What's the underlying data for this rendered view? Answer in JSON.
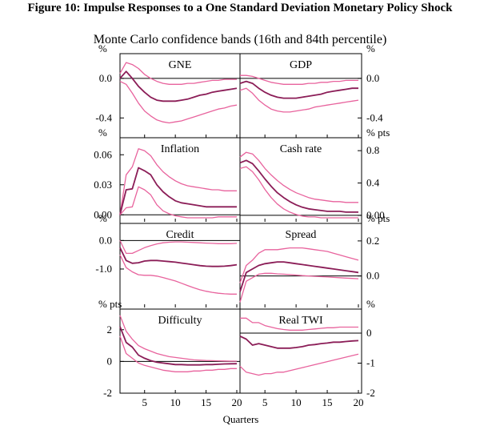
{
  "figure": {
    "title": "Figure 10: Impulse Responses to a One Standard Deviation Monetary Policy Shock",
    "subtitle": "Monte Carlo confidence bands (16th and 84th percentile)",
    "xlabel": "Quarters",
    "x_ticks": [
      "5",
      "10",
      "15",
      "20"
    ]
  },
  "colors": {
    "central": "#8b1d57",
    "band": "#e8639d",
    "zero": "#000000"
  },
  "chart_data": [
    {
      "type": "line",
      "title": "GNE",
      "unit": "%",
      "ylim": [
        -0.6,
        0.25
      ],
      "yticks": [
        0.0,
        -0.4
      ],
      "ytick_labels": [
        "0.0",
        "-0.4"
      ],
      "side": "left",
      "x": [
        1,
        2,
        3,
        4,
        5,
        6,
        7,
        8,
        9,
        10,
        11,
        12,
        13,
        14,
        15,
        16,
        17,
        18,
        19,
        20
      ],
      "series": [
        {
          "role": "upper",
          "values": [
            0.05,
            0.16,
            0.14,
            0.1,
            0.04,
            0.0,
            -0.03,
            -0.05,
            -0.06,
            -0.06,
            -0.06,
            -0.05,
            -0.05,
            -0.04,
            -0.03,
            -0.02,
            -0.02,
            -0.01,
            -0.01,
            -0.01
          ]
        },
        {
          "role": "central",
          "values": [
            0.0,
            0.07,
            0.0,
            -0.08,
            -0.14,
            -0.19,
            -0.22,
            -0.23,
            -0.23,
            -0.23,
            -0.22,
            -0.21,
            -0.19,
            -0.17,
            -0.16,
            -0.14,
            -0.13,
            -0.12,
            -0.11,
            -0.1
          ]
        },
        {
          "role": "lower",
          "values": [
            -0.03,
            -0.06,
            -0.15,
            -0.25,
            -0.33,
            -0.38,
            -0.42,
            -0.44,
            -0.45,
            -0.44,
            -0.43,
            -0.41,
            -0.39,
            -0.37,
            -0.35,
            -0.33,
            -0.31,
            -0.3,
            -0.28,
            -0.27
          ]
        }
      ]
    },
    {
      "type": "line",
      "title": "GDP",
      "unit": "%",
      "ylim": [
        -0.6,
        0.25
      ],
      "yticks": [
        0.0,
        -0.4
      ],
      "ytick_labels": [
        "0.0",
        "-0.4"
      ],
      "side": "right",
      "x": [
        1,
        2,
        3,
        4,
        5,
        6,
        7,
        8,
        9,
        10,
        11,
        12,
        13,
        14,
        15,
        16,
        17,
        18,
        19,
        20
      ],
      "series": [
        {
          "role": "upper",
          "values": [
            0.03,
            0.03,
            0.02,
            0.0,
            -0.02,
            -0.04,
            -0.05,
            -0.06,
            -0.06,
            -0.06,
            -0.06,
            -0.05,
            -0.05,
            -0.04,
            -0.04,
            -0.03,
            -0.03,
            -0.02,
            -0.02,
            -0.02
          ]
        },
        {
          "role": "central",
          "values": [
            -0.05,
            -0.03,
            -0.05,
            -0.1,
            -0.14,
            -0.17,
            -0.19,
            -0.2,
            -0.2,
            -0.2,
            -0.19,
            -0.18,
            -0.17,
            -0.16,
            -0.14,
            -0.13,
            -0.12,
            -0.11,
            -0.1,
            -0.1
          ]
        },
        {
          "role": "lower",
          "values": [
            -0.12,
            -0.1,
            -0.15,
            -0.22,
            -0.27,
            -0.31,
            -0.33,
            -0.34,
            -0.34,
            -0.33,
            -0.32,
            -0.31,
            -0.29,
            -0.28,
            -0.27,
            -0.26,
            -0.25,
            -0.24,
            -0.23,
            -0.22
          ]
        }
      ]
    },
    {
      "type": "line",
      "title": "Inflation",
      "unit": "%",
      "ylim": [
        -0.007,
        0.077
      ],
      "yticks": [
        0.06,
        0.03,
        0.0
      ],
      "ytick_labels": [
        "0.06",
        "0.03",
        "0.00"
      ],
      "side": "left",
      "x": [
        1,
        2,
        3,
        4,
        5,
        6,
        7,
        8,
        9,
        10,
        11,
        12,
        13,
        14,
        15,
        16,
        17,
        18,
        19,
        20
      ],
      "series": [
        {
          "role": "upper",
          "values": [
            0.0,
            0.04,
            0.048,
            0.066,
            0.064,
            0.059,
            0.05,
            0.043,
            0.038,
            0.034,
            0.031,
            0.029,
            0.028,
            0.027,
            0.026,
            0.025,
            0.025,
            0.024,
            0.024,
            0.024
          ]
        },
        {
          "role": "central",
          "values": [
            0.0,
            0.025,
            0.026,
            0.047,
            0.044,
            0.04,
            0.03,
            0.023,
            0.018,
            0.014,
            0.012,
            0.011,
            0.01,
            0.009,
            0.008,
            0.008,
            0.008,
            0.008,
            0.008,
            0.008
          ]
        },
        {
          "role": "lower",
          "values": [
            0.0,
            0.007,
            0.008,
            0.028,
            0.025,
            0.02,
            0.01,
            0.004,
            0.001,
            -0.001,
            -0.002,
            -0.003,
            -0.003,
            -0.003,
            -0.003,
            -0.003,
            -0.002,
            -0.002,
            -0.002,
            -0.002
          ]
        }
      ]
    },
    {
      "type": "line",
      "title": "Cash rate",
      "unit": "% pts",
      "ylim": [
        -0.08,
        0.96
      ],
      "yticks": [
        0.8,
        0.4,
        0.0
      ],
      "ytick_labels": [
        "0.8",
        "0.4",
        "0.00"
      ],
      "side": "right",
      "x": [
        1,
        2,
        3,
        4,
        5,
        6,
        7,
        8,
        9,
        10,
        11,
        12,
        13,
        14,
        15,
        16,
        17,
        18,
        19,
        20
      ],
      "series": [
        {
          "role": "upper",
          "values": [
            0.72,
            0.78,
            0.76,
            0.68,
            0.58,
            0.5,
            0.43,
            0.37,
            0.32,
            0.28,
            0.25,
            0.22,
            0.2,
            0.19,
            0.18,
            0.17,
            0.17,
            0.16,
            0.16,
            0.16
          ]
        },
        {
          "role": "central",
          "values": [
            0.65,
            0.68,
            0.64,
            0.55,
            0.45,
            0.36,
            0.28,
            0.22,
            0.17,
            0.13,
            0.1,
            0.08,
            0.07,
            0.06,
            0.05,
            0.05,
            0.05,
            0.04,
            0.04,
            0.04
          ]
        },
        {
          "role": "lower",
          "values": [
            0.58,
            0.6,
            0.54,
            0.44,
            0.32,
            0.22,
            0.14,
            0.08,
            0.04,
            0.01,
            -0.01,
            -0.02,
            -0.02,
            -0.03,
            -0.03,
            -0.03,
            -0.03,
            -0.03,
            -0.03,
            -0.03
          ]
        }
      ]
    },
    {
      "type": "line",
      "title": "Credit",
      "unit": "%",
      "ylim": [
        -2.35,
        0.6
      ],
      "yticks": [
        0.0,
        -1.0
      ],
      "ytick_labels": [
        "0.0",
        "-1.0"
      ],
      "side": "left",
      "x": [
        1,
        2,
        3,
        4,
        5,
        6,
        7,
        8,
        9,
        10,
        11,
        12,
        13,
        14,
        15,
        16,
        17,
        18,
        19,
        20
      ],
      "series": [
        {
          "role": "upper",
          "values": [
            0.0,
            -0.45,
            -0.45,
            -0.35,
            -0.25,
            -0.18,
            -0.12,
            -0.08,
            -0.06,
            -0.05,
            -0.05,
            -0.06,
            -0.07,
            -0.08,
            -0.09,
            -0.1,
            -0.11,
            -0.11,
            -0.11,
            -0.1
          ]
        },
        {
          "role": "central",
          "values": [
            -0.25,
            -0.7,
            -0.8,
            -0.78,
            -0.72,
            -0.7,
            -0.7,
            -0.72,
            -0.74,
            -0.76,
            -0.79,
            -0.82,
            -0.85,
            -0.88,
            -0.9,
            -0.91,
            -0.91,
            -0.9,
            -0.88,
            -0.85
          ]
        },
        {
          "role": "lower",
          "values": [
            -0.5,
            -0.95,
            -1.1,
            -1.2,
            -1.22,
            -1.22,
            -1.25,
            -1.3,
            -1.36,
            -1.42,
            -1.5,
            -1.58,
            -1.66,
            -1.73,
            -1.78,
            -1.82,
            -1.85,
            -1.87,
            -1.88,
            -1.88
          ]
        }
      ]
    },
    {
      "type": "line",
      "title": "Spread",
      "unit": "% pts",
      "ylim": [
        -0.18,
        0.3
      ],
      "yticks": [
        0.2,
        0.0
      ],
      "ytick_labels": [
        "0.2",
        "0.0"
      ],
      "side": "right",
      "x": [
        1,
        2,
        3,
        4,
        5,
        6,
        7,
        8,
        9,
        10,
        11,
        12,
        13,
        14,
        15,
        16,
        17,
        18,
        19,
        20
      ],
      "series": [
        {
          "role": "upper",
          "values": [
            -0.04,
            0.06,
            0.09,
            0.13,
            0.15,
            0.15,
            0.15,
            0.155,
            0.16,
            0.16,
            0.16,
            0.155,
            0.15,
            0.145,
            0.14,
            0.13,
            0.12,
            0.11,
            0.1,
            0.09
          ]
        },
        {
          "role": "central",
          "values": [
            -0.09,
            0.02,
            0.04,
            0.06,
            0.07,
            0.075,
            0.08,
            0.08,
            0.075,
            0.07,
            0.065,
            0.06,
            0.055,
            0.05,
            0.045,
            0.04,
            0.035,
            0.03,
            0.025,
            0.02
          ]
        },
        {
          "role": "lower",
          "values": [
            -0.15,
            -0.03,
            -0.01,
            0.01,
            0.015,
            0.015,
            0.012,
            0.01,
            0.008,
            0.005,
            0.002,
            0.0,
            -0.002,
            -0.004,
            -0.006,
            -0.008,
            -0.01,
            -0.012,
            -0.014,
            -0.016
          ]
        }
      ]
    },
    {
      "type": "line",
      "title": "Difficulty",
      "unit": "% pts",
      "ylim": [
        -2,
        3.3
      ],
      "yticks": [
        2,
        0,
        -2
      ],
      "ytick_labels": [
        "2",
        "0",
        "-2"
      ],
      "side": "left",
      "x": [
        1,
        2,
        3,
        4,
        5,
        6,
        7,
        8,
        9,
        10,
        11,
        12,
        13,
        14,
        15,
        16,
        17,
        18,
        19,
        20
      ],
      "series": [
        {
          "role": "upper",
          "values": [
            2.9,
            1.9,
            1.4,
            1.0,
            0.8,
            0.65,
            0.5,
            0.4,
            0.3,
            0.25,
            0.2,
            0.15,
            0.1,
            0.08,
            0.06,
            0.05,
            0.04,
            0.03,
            0.02,
            0.02
          ]
        },
        {
          "role": "central",
          "values": [
            2.2,
            1.2,
            0.9,
            0.4,
            0.2,
            0.05,
            -0.05,
            -0.1,
            -0.15,
            -0.2,
            -0.2,
            -0.22,
            -0.22,
            -0.22,
            -0.2,
            -0.2,
            -0.18,
            -0.16,
            -0.15,
            -0.14
          ]
        },
        {
          "role": "lower",
          "values": [
            1.6,
            0.5,
            0.2,
            -0.1,
            -0.25,
            -0.35,
            -0.45,
            -0.55,
            -0.6,
            -0.65,
            -0.65,
            -0.65,
            -0.6,
            -0.6,
            -0.55,
            -0.55,
            -0.5,
            -0.5,
            -0.45,
            -0.45
          ]
        }
      ]
    },
    {
      "type": "line",
      "title": "Real TWI",
      "unit": "%",
      "ylim": [
        -2,
        0.8
      ],
      "yticks": [
        0,
        -1,
        -2
      ],
      "ytick_labels": [
        "0",
        "-1",
        "-2"
      ],
      "side": "right",
      "x": [
        1,
        2,
        3,
        4,
        5,
        6,
        7,
        8,
        9,
        10,
        11,
        12,
        13,
        14,
        15,
        16,
        17,
        18,
        19,
        20
      ],
      "series": [
        {
          "role": "upper",
          "values": [
            0.5,
            0.5,
            0.35,
            0.35,
            0.25,
            0.2,
            0.15,
            0.12,
            0.1,
            0.1,
            0.1,
            0.12,
            0.14,
            0.16,
            0.18,
            0.18,
            0.2,
            0.2,
            0.2,
            0.2
          ]
        },
        {
          "role": "central",
          "values": [
            -0.1,
            -0.2,
            -0.4,
            -0.35,
            -0.4,
            -0.45,
            -0.5,
            -0.5,
            -0.5,
            -0.48,
            -0.45,
            -0.4,
            -0.38,
            -0.35,
            -0.33,
            -0.3,
            -0.3,
            -0.28,
            -0.26,
            -0.25
          ]
        },
        {
          "role": "lower",
          "values": [
            -1.1,
            -1.3,
            -1.35,
            -1.4,
            -1.35,
            -1.35,
            -1.3,
            -1.3,
            -1.25,
            -1.2,
            -1.15,
            -1.1,
            -1.05,
            -1.0,
            -0.95,
            -0.9,
            -0.85,
            -0.8,
            -0.75,
            -0.7
          ]
        }
      ]
    }
  ]
}
